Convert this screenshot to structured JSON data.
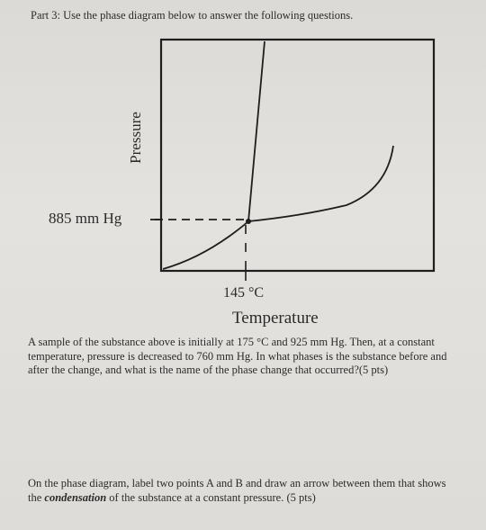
{
  "heading": "Part 3: Use the phase diagram below to answer the following questions.",
  "diagram": {
    "y_axis_label": "Pressure",
    "x_axis_label": "Temperature",
    "pressure_tick": "885 mm Hg",
    "temperature_tick": "145 °C",
    "line_color": "#1e1e1e"
  },
  "question1": "A sample of the substance above is initially at 175 °C and 925 mm Hg. Then, at a constant temperature, pressure is decreased to 760 mm Hg. In what phases is the substance before and after the change, and what is the name of the phase change that occurred?(5 pts)",
  "question2": {
    "before": "On the phase diagram, label two points A and B and draw an arrow between them that shows the ",
    "emphasis": "condensation",
    "after": " of the substance at a constant pressure. (5 pts)"
  }
}
